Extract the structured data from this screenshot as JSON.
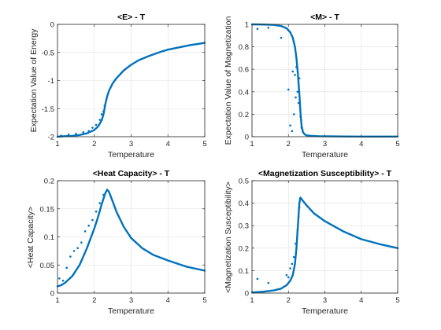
{
  "colors": {
    "series": "#0072BD",
    "grid": "#dfdfdf",
    "axis": "#262626",
    "background": "#ffffff"
  },
  "chart_data": [
    {
      "type": "scatter",
      "title": "<E> - T",
      "xlabel": "Temperature",
      "ylabel": "Expectation Value of Energy",
      "xlim": [
        1,
        5
      ],
      "ylim": [
        -2,
        0
      ],
      "grid": true,
      "xticks": [
        1,
        2,
        3,
        4,
        5
      ],
      "xtick_labels": [
        "1",
        "2",
        "3",
        "4",
        "5"
      ],
      "yticks": [
        -2,
        -1.5,
        -1,
        -0.5,
        0
      ],
      "ytick_labels": [
        "-2",
        "-1.5",
        "-1",
        "-0.5",
        "0"
      ],
      "curve": {
        "x": [
          1.0,
          1.2,
          1.4,
          1.6,
          1.8,
          2.0,
          2.1,
          2.2,
          2.25,
          2.3,
          2.35,
          2.4,
          2.5,
          2.6,
          2.8,
          3.0,
          3.2,
          3.5,
          3.8,
          4.0,
          4.3,
          4.6,
          5.0
        ],
        "y": [
          -2.0,
          -1.99,
          -1.985,
          -1.97,
          -1.94,
          -1.88,
          -1.82,
          -1.71,
          -1.6,
          -1.42,
          -1.28,
          -1.18,
          -1.05,
          -0.96,
          -0.82,
          -0.72,
          -0.64,
          -0.56,
          -0.49,
          -0.45,
          -0.41,
          -0.37,
          -0.33
        ]
      },
      "scatter": {
        "x": [
          1.1,
          1.3,
          1.5,
          1.7,
          1.85,
          1.95,
          2.05,
          2.15,
          2.2,
          2.25,
          2.28
        ],
        "y": [
          -1.98,
          -1.96,
          -1.95,
          -1.92,
          -1.9,
          -1.84,
          -1.79,
          -1.7,
          -1.6,
          -1.55,
          -1.45
        ]
      }
    },
    {
      "type": "scatter",
      "title": "<M> - T",
      "xlabel": "Temperature",
      "ylabel": "Expectation Value of Magnetization",
      "xlim": [
        1,
        5
      ],
      "ylim": [
        0,
        1
      ],
      "grid": true,
      "xticks": [
        1,
        2,
        3,
        4,
        5
      ],
      "xtick_labels": [
        "1",
        "2",
        "3",
        "4",
        "5"
      ],
      "yticks": [
        0,
        0.2,
        0.4,
        0.6,
        0.8,
        1
      ],
      "ytick_labels": [
        "0",
        "0.2",
        "0.4",
        "0.6",
        "0.8",
        "1"
      ],
      "curve": {
        "x": [
          1.0,
          1.3,
          1.6,
          1.8,
          1.95,
          2.05,
          2.12,
          2.18,
          2.22,
          2.26,
          2.3,
          2.33,
          2.36,
          2.4,
          2.45,
          2.5,
          2.6,
          2.8,
          3.0,
          3.5,
          4.0,
          4.5,
          5.0
        ],
        "y": [
          1.0,
          0.999,
          0.995,
          0.985,
          0.965,
          0.93,
          0.88,
          0.8,
          0.7,
          0.56,
          0.38,
          0.22,
          0.1,
          0.04,
          0.02,
          0.012,
          0.008,
          0.005,
          0.004,
          0.002,
          0.001,
          0.001,
          0.001
        ]
      },
      "scatter": {
        "x": [
          1.15,
          1.45,
          1.8,
          2.0,
          2.05,
          2.1,
          2.12,
          2.15,
          2.18,
          2.2,
          2.22,
          2.25,
          2.28,
          2.3,
          2.33,
          2.36
        ],
        "y": [
          0.96,
          0.97,
          0.88,
          0.42,
          0.1,
          0.05,
          0.58,
          0.2,
          0.55,
          0.35,
          0.62,
          0.4,
          0.3,
          0.52,
          0.18,
          0.08
        ]
      }
    },
    {
      "type": "scatter",
      "title": "<Heat Capacity> - T",
      "xlabel": "Temperature",
      "ylabel": "<Heat Capacity>",
      "xlim": [
        1,
        5
      ],
      "ylim": [
        0,
        0.2
      ],
      "grid": true,
      "xticks": [
        1,
        2,
        3,
        4,
        5
      ],
      "xtick_labels": [
        "1",
        "2",
        "3",
        "4",
        "5"
      ],
      "yticks": [
        0,
        0.05,
        0.1,
        0.15,
        0.2
      ],
      "ytick_labels": [
        "0",
        "0.05",
        "0.1",
        "0.15",
        "0.2"
      ],
      "curve": {
        "x": [
          1.0,
          1.1,
          1.2,
          1.4,
          1.6,
          1.8,
          2.0,
          2.1,
          2.2,
          2.3,
          2.35,
          2.4,
          2.5,
          2.6,
          2.8,
          3.0,
          3.3,
          3.6,
          4.0,
          4.5,
          5.0
        ],
        "y": [
          0.012,
          0.014,
          0.018,
          0.03,
          0.05,
          0.08,
          0.115,
          0.135,
          0.158,
          0.178,
          0.184,
          0.18,
          0.163,
          0.145,
          0.118,
          0.098,
          0.08,
          0.068,
          0.058,
          0.047,
          0.04
        ]
      },
      "scatter": {
        "x": [
          1.05,
          1.15,
          1.25,
          1.35,
          1.45,
          1.55,
          1.65,
          1.75,
          1.85,
          1.95,
          2.05,
          2.15,
          2.25
        ],
        "y": [
          0.026,
          0.022,
          0.045,
          0.065,
          0.075,
          0.08,
          0.09,
          0.11,
          0.12,
          0.13,
          0.145,
          0.16,
          0.175
        ]
      }
    },
    {
      "type": "scatter",
      "title": "<Magnetization Susceptibility> - T",
      "xlabel": "Temperature",
      "ylabel": "<Magnetization Susceptibility>",
      "xlim": [
        1,
        5
      ],
      "ylim": [
        0,
        0.5
      ],
      "grid": true,
      "xticks": [
        1,
        2,
        3,
        4,
        5
      ],
      "xtick_labels": [
        "1",
        "2",
        "3",
        "4",
        "5"
      ],
      "yticks": [
        0,
        0.1,
        0.2,
        0.3,
        0.4,
        0.5
      ],
      "ytick_labels": [
        "0",
        "0.1",
        "0.2",
        "0.3",
        "0.4",
        "0.5"
      ],
      "curve": {
        "x": [
          1.0,
          1.3,
          1.6,
          1.8,
          1.95,
          2.05,
          2.12,
          2.18,
          2.22,
          2.26,
          2.3,
          2.33,
          2.4,
          2.5,
          2.7,
          3.0,
          3.5,
          4.0,
          4.5,
          5.0
        ],
        "y": [
          0.003,
          0.006,
          0.012,
          0.02,
          0.035,
          0.055,
          0.08,
          0.13,
          0.2,
          0.3,
          0.4,
          0.425,
          0.41,
          0.39,
          0.355,
          0.32,
          0.275,
          0.24,
          0.218,
          0.2
        ]
      },
      "scatter": {
        "x": [
          1.15,
          1.45,
          1.95,
          2.0,
          2.05,
          2.1,
          2.15,
          2.2,
          2.25,
          2.28,
          2.3,
          2.32
        ],
        "y": [
          0.063,
          0.045,
          0.08,
          0.07,
          0.11,
          0.13,
          0.16,
          0.22,
          0.28,
          0.34,
          0.38,
          0.42
        ]
      }
    }
  ]
}
